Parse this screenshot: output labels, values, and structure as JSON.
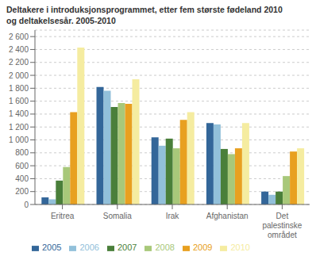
{
  "chart_data": {
    "type": "bar",
    "title": "Deltakere i introduksjonsprogrammet, etter fem største fødeland 2010\nog deltakelsesår. 2005-2010",
    "categories": [
      "Eritrea",
      "Somalia",
      "Irak",
      "Afghanistan",
      "Det\npalestinske\nområdet"
    ],
    "series": [
      {
        "name": "2005",
        "color": "#336699",
        "values": [
          110,
          1820,
          1040,
          1260,
          200
        ]
      },
      {
        "name": "2006",
        "color": "#92C0DA",
        "values": [
          80,
          1760,
          910,
          1240,
          150
        ]
      },
      {
        "name": "2007",
        "color": "#4A7F3A",
        "values": [
          370,
          1510,
          1020,
          860,
          200
        ]
      },
      {
        "name": "2008",
        "color": "#A8C87A",
        "values": [
          580,
          1570,
          870,
          780,
          440
        ]
      },
      {
        "name": "2009",
        "color": "#E8A020",
        "values": [
          1430,
          1560,
          1310,
          870,
          820
        ]
      },
      {
        "name": "2010",
        "color": "#F5ECA0",
        "values": [
          2430,
          1940,
          1430,
          1260,
          870
        ]
      }
    ],
    "ylim": [
      0,
      2700
    ],
    "yticks": [
      0,
      200,
      400,
      600,
      800,
      {
        "value": 1000,
        "label": "1 000"
      },
      {
        "value": 1200,
        "label": "1 200"
      },
      {
        "value": 1400,
        "label": "1 400"
      },
      {
        "value": 1600,
        "label": "1 600"
      },
      {
        "value": 1800,
        "label": "1 800"
      },
      {
        "value": 2000,
        "label": "2 000"
      },
      {
        "value": 2200,
        "label": "2 200"
      },
      {
        "value": 2400,
        "label": "2 400"
      },
      {
        "value": 2600,
        "label": "2 600"
      }
    ],
    "grid": true,
    "legend": "bottom"
  }
}
